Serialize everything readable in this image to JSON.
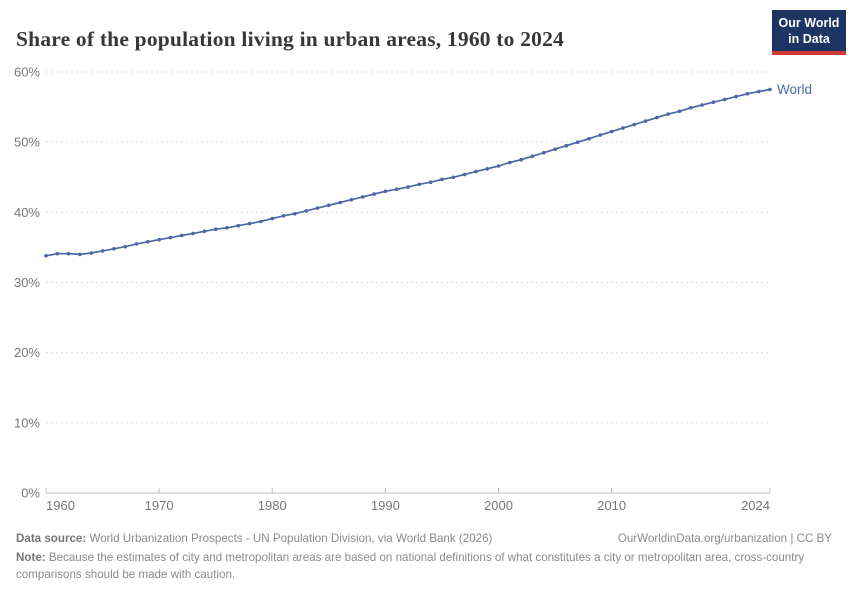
{
  "header": {
    "title": "Share of the population living in urban areas, 1960 to 2024",
    "logo": {
      "line1": "Our World",
      "line2": "in Data"
    }
  },
  "chart_data": {
    "type": "line",
    "title": "Share of the population living in urban areas, 1960 to 2024",
    "xlabel": "",
    "ylabel": "",
    "xlim": [
      1960,
      2024
    ],
    "ylim": [
      0,
      60
    ],
    "grid": "horizontal-dashed",
    "legend_position": "end-of-line",
    "x_ticks": [
      1960,
      1970,
      1980,
      1990,
      2000,
      2010,
      2024
    ],
    "y_ticks": [
      0,
      10,
      20,
      30,
      40,
      50,
      60
    ],
    "y_tick_suffix": "%",
    "x": [
      1960,
      1961,
      1962,
      1963,
      1964,
      1965,
      1966,
      1967,
      1968,
      1969,
      1970,
      1971,
      1972,
      1973,
      1974,
      1975,
      1976,
      1977,
      1978,
      1979,
      1980,
      1981,
      1982,
      1983,
      1984,
      1985,
      1986,
      1987,
      1988,
      1989,
      1990,
      1991,
      1992,
      1993,
      1994,
      1995,
      1996,
      1997,
      1998,
      1999,
      2000,
      2001,
      2002,
      2003,
      2004,
      2005,
      2006,
      2007,
      2008,
      2009,
      2010,
      2011,
      2012,
      2013,
      2014,
      2015,
      2016,
      2017,
      2018,
      2019,
      2020,
      2021,
      2022,
      2023,
      2024
    ],
    "series": [
      {
        "name": "World",
        "color": "#4a67a3",
        "values": [
          33.8,
          34.1,
          34.1,
          34.0,
          34.2,
          34.5,
          34.8,
          35.1,
          35.5,
          35.8,
          36.1,
          36.4,
          36.7,
          37.0,
          37.3,
          37.6,
          37.8,
          38.1,
          38.4,
          38.7,
          39.1,
          39.5,
          39.8,
          40.2,
          40.6,
          41.0,
          41.4,
          41.8,
          42.2,
          42.6,
          43.0,
          43.3,
          43.6,
          44.0,
          44.3,
          44.7,
          45.0,
          45.4,
          45.8,
          46.2,
          46.6,
          47.1,
          47.5,
          48.0,
          48.5,
          49.0,
          49.5,
          50.0,
          50.5,
          51.0,
          51.5,
          52.0,
          52.5,
          53.0,
          53.5,
          54.0,
          54.4,
          54.9,
          55.3,
          55.7,
          56.1,
          56.5,
          56.9,
          57.2,
          57.5
        ]
      }
    ]
  },
  "colors": {
    "grid": "#dcdcdc",
    "axis": "#bdbdbd",
    "tick_label": "#767676",
    "title": "#373737",
    "footer": "#8a8a8a",
    "logo_bg": "#1d3563",
    "logo_red": "#d33a34"
  },
  "footer": {
    "source_label": "Data source:",
    "source_text": " World Urbanization Prospects - UN Population Division, via World Bank (2026)",
    "rights": "OurWorldinData.org/urbanization | CC BY",
    "note_label": "Note:",
    "note_text": " Because the estimates of city and metropolitan areas are based on national definitions of what constitutes a city or metropolitan area, cross-country comparisons should be made with caution."
  }
}
